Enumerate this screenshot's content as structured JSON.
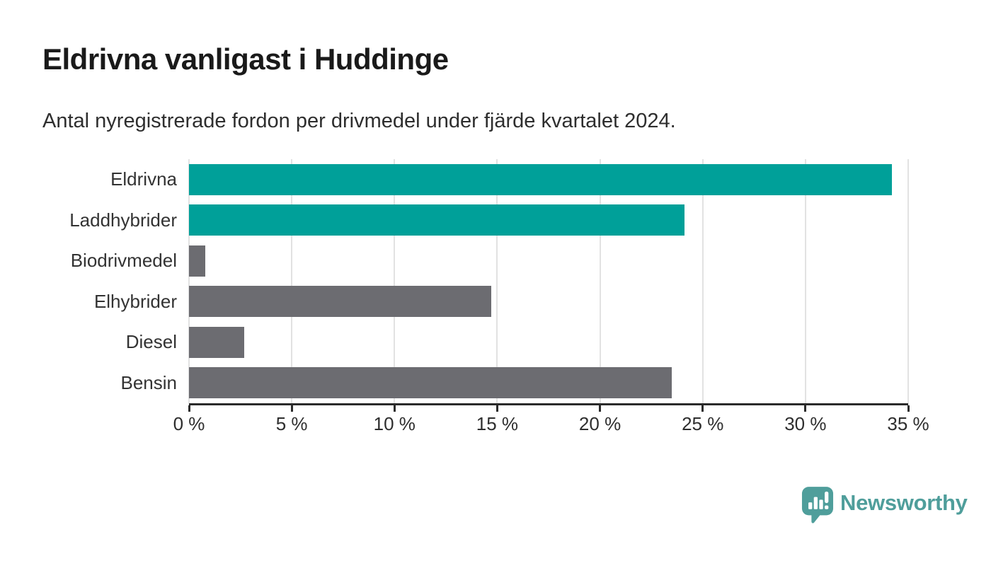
{
  "title": "Eldrivna vanligast i Huddinge",
  "subtitle": "Antal nyregistrerade fordon per drivmedel under fjärde kvartalet 2024.",
  "chart_data": {
    "type": "bar",
    "orientation": "horizontal",
    "title": "Eldrivna vanligast i Huddinge",
    "subtitle": "Antal nyregistrerade fordon per drivmedel under fjärde kvartalet 2024.",
    "categories": [
      "Eldrivna",
      "Laddhybrider",
      "Biodrivmedel",
      "Elhybrider",
      "Diesel",
      "Bensin"
    ],
    "values": [
      34.2,
      24.1,
      0.8,
      14.7,
      2.7,
      23.5
    ],
    "unit": "%",
    "xlim": [
      0,
      35
    ],
    "x_ticks": [
      0,
      5,
      10,
      15,
      20,
      25,
      30,
      35
    ],
    "x_tick_labels": [
      "0 %",
      "5 %",
      "10 %",
      "15 %",
      "20 %",
      "25 %",
      "30 %",
      "35 %"
    ],
    "bar_colors": [
      "#00a099",
      "#00a099",
      "#6c6c71",
      "#6c6c71",
      "#6c6c71",
      "#6c6c71"
    ],
    "grid": true,
    "legend": false
  },
  "colors": {
    "accent_teal": "#00a099",
    "bar_gray": "#6c6c71",
    "gridline": "#e2e2e2",
    "axis": "#2b2b2b",
    "title_text": "#1a1a1a",
    "body_text": "#333333",
    "brand_teal": "#4f9e9b"
  },
  "branding": {
    "logo_text": "Newsworthy",
    "logo_icon": "newsworthy-speech-bubble-chart-icon"
  }
}
